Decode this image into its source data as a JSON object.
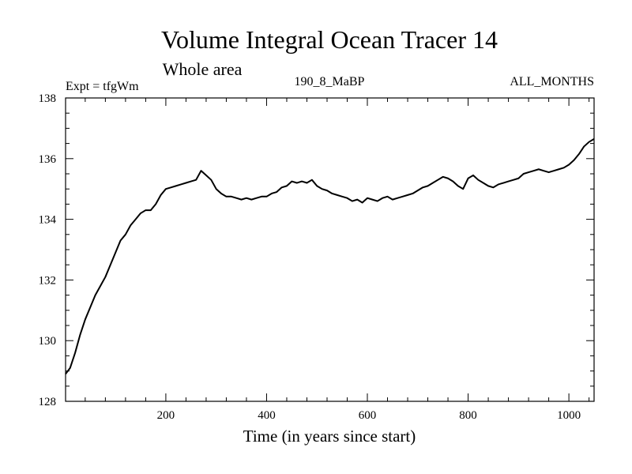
{
  "chart_data": {
    "type": "line",
    "title": "Volume Integral Ocean Tracer 14",
    "subtitle": "Whole area",
    "annotation_left": "Expt = tfgWm",
    "annotation_center": "190_8_MaBP",
    "annotation_right": "ALL_MONTHS",
    "xlabel": "Time (in years since start)",
    "ylabel": "",
    "xlim": [
      1,
      1050
    ],
    "ylim": [
      128,
      138
    ],
    "xticks": [
      200,
      400,
      600,
      800,
      1000
    ],
    "xtick_labels": [
      "200",
      "400",
      "600",
      "800",
      "1000"
    ],
    "yticks": [
      128,
      130,
      132,
      134,
      136,
      138
    ],
    "ytick_labels": [
      "128",
      "130",
      "132",
      "134",
      "136",
      "138"
    ],
    "grid": false,
    "line_color": "#000000",
    "series": [
      {
        "x": [
          1,
          10,
          20,
          30,
          40,
          50,
          60,
          70,
          80,
          90,
          100,
          110,
          120,
          130,
          140,
          150,
          160,
          170,
          180,
          190,
          200,
          210,
          220,
          230,
          240,
          250,
          260,
          270,
          280,
          290,
          300,
          310,
          320,
          330,
          340,
          350,
          360,
          370,
          380,
          390,
          400,
          410,
          420,
          430,
          440,
          450,
          460,
          470,
          480,
          490,
          500,
          510,
          520,
          530,
          540,
          550,
          560,
          570,
          580,
          590,
          600,
          610,
          620,
          630,
          640,
          650,
          660,
          670,
          680,
          690,
          700,
          710,
          720,
          730,
          740,
          750,
          760,
          770,
          780,
          790,
          800,
          810,
          820,
          830,
          840,
          850,
          860,
          870,
          880,
          890,
          900,
          910,
          920,
          930,
          940,
          950,
          960,
          970,
          980,
          990,
          1000,
          1010,
          1020,
          1030,
          1040,
          1050
        ],
        "values": [
          128.9,
          129.1,
          129.6,
          130.2,
          130.7,
          131.1,
          131.5,
          131.8,
          132.1,
          132.5,
          132.9,
          133.3,
          133.5,
          133.8,
          134.0,
          134.2,
          134.3,
          134.3,
          134.5,
          134.8,
          135.0,
          135.05,
          135.1,
          135.15,
          135.2,
          135.25,
          135.3,
          135.6,
          135.45,
          135.3,
          135.0,
          134.85,
          134.75,
          134.75,
          134.7,
          134.65,
          134.7,
          134.65,
          134.7,
          134.75,
          134.75,
          134.85,
          134.9,
          135.05,
          135.1,
          135.25,
          135.2,
          135.25,
          135.2,
          135.3,
          135.1,
          135.0,
          134.95,
          134.85,
          134.8,
          134.75,
          134.7,
          134.6,
          134.65,
          134.55,
          134.7,
          134.65,
          134.6,
          134.7,
          134.75,
          134.65,
          134.7,
          134.75,
          134.8,
          134.85,
          134.95,
          135.05,
          135.1,
          135.2,
          135.3,
          135.4,
          135.35,
          135.25,
          135.1,
          135.0,
          135.35,
          135.45,
          135.3,
          135.2,
          135.1,
          135.05,
          135.15,
          135.2,
          135.25,
          135.3,
          135.35,
          135.5,
          135.55,
          135.6,
          135.65,
          135.6,
          135.55,
          135.6,
          135.65,
          135.7,
          135.8,
          135.95,
          136.15,
          136.4,
          136.55,
          136.65
        ]
      }
    ]
  }
}
